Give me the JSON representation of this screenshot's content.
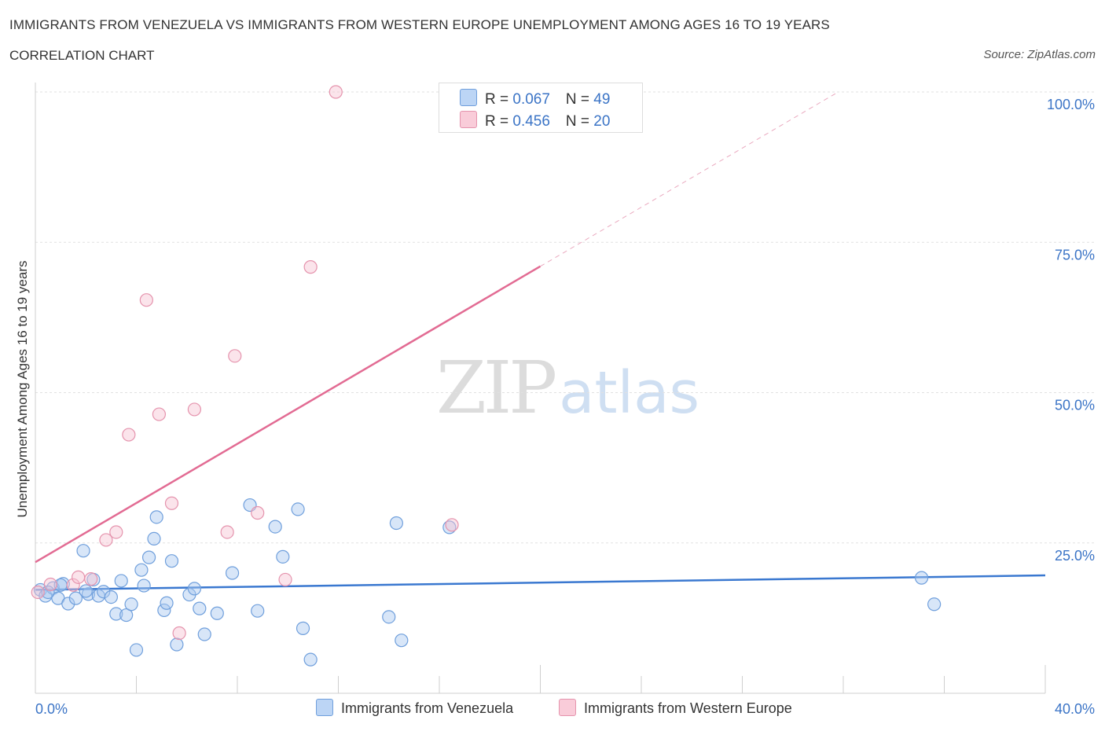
{
  "header": {
    "title": "IMMIGRANTS FROM VENEZUELA VS IMMIGRANTS FROM WESTERN EUROPE UNEMPLOYMENT AMONG AGES 16 TO 19 YEARS",
    "subtitle": "CORRELATION CHART",
    "source": "Source: ZipAtlas.com"
  },
  "watermark": {
    "zip": "ZIP",
    "atlas": "atlas"
  },
  "legend": {
    "series": [
      {
        "r_label": "R = ",
        "r_value": "0.067",
        "n_label": "N = ",
        "n_value": "49",
        "color": "#a9c8f0",
        "border": "#6f9fdc"
      },
      {
        "r_label": "R = ",
        "r_value": "0.456",
        "n_label": "N = ",
        "n_value": "20",
        "color": "#f7c3d2",
        "border": "#e593ad"
      }
    ]
  },
  "bottom_legend": {
    "venezuela": "Immigrants from Venezuela",
    "western_europe": "Immigrants from Western Europe"
  },
  "chart_data": {
    "type": "scatter",
    "title": "IMMIGRANTS FROM VENEZUELA VS IMMIGRANTS FROM WESTERN EUROPE UNEMPLOYMENT AMONG AGES 16 TO 19 YEARS",
    "xlabel": "",
    "ylabel": "Unemployment Among Ages 16 to 19 years",
    "xlim": [
      0,
      40
    ],
    "ylim": [
      0,
      100
    ],
    "x_tick_labels": [
      "0.0%",
      "40.0%"
    ],
    "y_ticks": [
      25,
      50,
      75,
      100
    ],
    "y_tick_labels": [
      "25.0%",
      "50.0%",
      "75.0%",
      "100.0%"
    ],
    "grid": true,
    "colors": {
      "venezuela": "#3a78d0",
      "western_europe": "#e26b93"
    },
    "series": [
      {
        "name": "Immigrants from Venezuela",
        "points": [
          [
            0.2,
            17.2
          ],
          [
            0.4,
            16.2
          ],
          [
            0.7,
            17.5
          ],
          [
            0.9,
            15.8
          ],
          [
            1.1,
            18.2
          ],
          [
            1.3,
            14.9
          ],
          [
            1.6,
            15.8
          ],
          [
            1.9,
            23.7
          ],
          [
            2.1,
            16.5
          ],
          [
            2.3,
            18.9
          ],
          [
            2.5,
            16.2
          ],
          [
            2.7,
            16.9
          ],
          [
            3.0,
            16.0
          ],
          [
            3.2,
            13.2
          ],
          [
            3.4,
            18.7
          ],
          [
            3.6,
            13.0
          ],
          [
            3.8,
            14.8
          ],
          [
            4.0,
            7.2
          ],
          [
            4.2,
            20.5
          ],
          [
            4.3,
            17.9
          ],
          [
            4.5,
            22.6
          ],
          [
            4.7,
            25.7
          ],
          [
            4.8,
            29.3
          ],
          [
            5.1,
            13.8
          ],
          [
            5.2,
            15.0
          ],
          [
            5.4,
            22.0
          ],
          [
            5.6,
            8.1
          ],
          [
            6.1,
            16.4
          ],
          [
            6.3,
            17.4
          ],
          [
            6.5,
            14.1
          ],
          [
            6.7,
            9.8
          ],
          [
            7.2,
            13.3
          ],
          [
            7.8,
            20.0
          ],
          [
            8.5,
            31.3
          ],
          [
            8.8,
            13.7
          ],
          [
            9.5,
            27.7
          ],
          [
            9.8,
            22.7
          ],
          [
            10.4,
            30.6
          ],
          [
            10.6,
            10.8
          ],
          [
            10.9,
            5.6
          ],
          [
            14.0,
            12.7
          ],
          [
            14.3,
            28.3
          ],
          [
            14.5,
            8.8
          ],
          [
            16.4,
            27.6
          ],
          [
            35.1,
            19.2
          ],
          [
            35.6,
            14.8
          ],
          [
            0.5,
            16.8
          ],
          [
            1.0,
            18.0
          ],
          [
            2.0,
            17.0
          ]
        ],
        "trend": {
          "x": [
            0,
            40
          ],
          "y": [
            17.2,
            19.6
          ]
        }
      },
      {
        "name": "Immigrants from Western Europe",
        "points": [
          [
            0.1,
            16.8
          ],
          [
            0.6,
            18.1
          ],
          [
            1.5,
            18.0
          ],
          [
            1.7,
            19.3
          ],
          [
            2.2,
            19.0
          ],
          [
            2.8,
            25.5
          ],
          [
            3.2,
            26.8
          ],
          [
            3.7,
            43.0
          ],
          [
            4.4,
            65.4
          ],
          [
            4.9,
            46.4
          ],
          [
            5.4,
            31.6
          ],
          [
            5.7,
            10.0
          ],
          [
            6.3,
            47.2
          ],
          [
            7.6,
            26.8
          ],
          [
            7.9,
            56.1
          ],
          [
            8.8,
            30.0
          ],
          [
            9.9,
            18.9
          ],
          [
            10.9,
            70.9
          ],
          [
            11.9,
            100.0
          ],
          [
            16.5,
            28.0
          ]
        ],
        "trend": {
          "x": [
            0,
            20
          ],
          "y": [
            21.8,
            71.0
          ]
        },
        "trend_extension": {
          "x": [
            20,
            31.8
          ],
          "y": [
            71.0,
            100.0
          ]
        }
      }
    ]
  }
}
